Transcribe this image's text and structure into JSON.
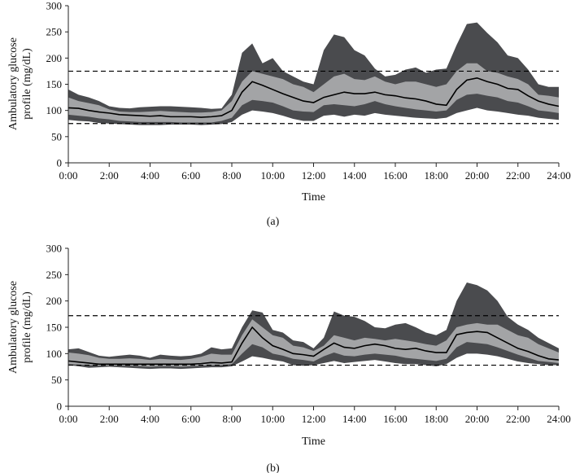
{
  "figure": {
    "panels": [
      "(a)",
      "(b)"
    ]
  },
  "chart_data": [
    {
      "type": "area",
      "panel_label": "(a)",
      "title": "",
      "xlabel": "Time",
      "ylabel": "Ambulatory glucose profile (mg/dL)",
      "ylim": [
        0,
        300
      ],
      "xlim": [
        0,
        24
      ],
      "grid": false,
      "x_ticks": [
        "0:00",
        "2:00",
        "4:00",
        "6:00",
        "8:00",
        "10:00",
        "12:00",
        "14:00",
        "16:00",
        "18:00",
        "20:00",
        "22:00",
        "24:00"
      ],
      "y_ticks": [
        0,
        50,
        100,
        150,
        200,
        250,
        300
      ],
      "reference_lines": [
        175,
        75
      ],
      "colors": {
        "outer_band": "#4a4b4e",
        "inner_band": "#a3a4a6",
        "median": "#000000",
        "reference": "#000000"
      },
      "x": [
        0,
        0.5,
        1,
        1.5,
        2,
        2.5,
        3,
        3.5,
        4,
        4.5,
        5,
        5.5,
        6,
        6.5,
        7,
        7.5,
        8,
        8.5,
        9,
        9.5,
        10,
        10.5,
        11,
        11.5,
        12,
        12.5,
        13,
        13.5,
        14,
        14.5,
        15,
        15.5,
        16,
        16.5,
        17,
        17.5,
        18,
        18.5,
        19,
        19.5,
        20,
        20.5,
        21,
        21.5,
        22,
        22.5,
        23,
        23.5,
        24
      ],
      "series": [
        {
          "values": [
            140,
            130,
            125,
            118,
            108,
            105,
            104,
            106,
            107,
            108,
            108,
            107,
            106,
            105,
            103,
            104,
            130,
            210,
            228,
            190,
            200,
            175,
            165,
            155,
            150,
            215,
            245,
            240,
            215,
            205,
            180,
            165,
            168,
            178,
            182,
            172,
            178,
            180,
            225,
            265,
            268,
            248,
            230,
            205,
            200,
            178,
            150,
            145,
            145
          ]
        },
        {
          "values": [
            125,
            118,
            114,
            110,
            102,
            98,
            97,
            97,
            98,
            99,
            98,
            97,
            96,
            96,
            97,
            100,
            118,
            155,
            175,
            170,
            165,
            160,
            150,
            145,
            135,
            150,
            165,
            170,
            160,
            158,
            165,
            155,
            150,
            155,
            155,
            150,
            145,
            150,
            175,
            190,
            190,
            175,
            172,
            165,
            160,
            150,
            130,
            128,
            125
          ]
        },
        {
          "values": [
            105,
            104,
            100,
            97,
            95,
            92,
            91,
            90,
            89,
            90,
            88,
            88,
            88,
            87,
            88,
            90,
            100,
            135,
            155,
            148,
            140,
            132,
            125,
            118,
            115,
            125,
            130,
            135,
            132,
            132,
            135,
            130,
            128,
            124,
            122,
            118,
            112,
            110,
            140,
            158,
            162,
            155,
            150,
            142,
            140,
            128,
            118,
            112,
            108
          ]
        },
        {
          "values": [
            92,
            90,
            88,
            85,
            83,
            80,
            79,
            78,
            78,
            78,
            78,
            77,
            77,
            77,
            77,
            80,
            86,
            110,
            120,
            118,
            115,
            108,
            100,
            98,
            97,
            110,
            112,
            110,
            108,
            112,
            118,
            112,
            108,
            105,
            102,
            100,
            98,
            100,
            120,
            130,
            132,
            128,
            125,
            118,
            115,
            108,
            100,
            98,
            95
          ]
        },
        {
          "values": [
            82,
            80,
            79,
            76,
            75,
            74,
            73,
            72,
            72,
            72,
            73,
            73,
            73,
            72,
            73,
            74,
            78,
            92,
            100,
            98,
            95,
            90,
            84,
            80,
            80,
            90,
            92,
            88,
            92,
            90,
            95,
            92,
            90,
            88,
            86,
            85,
            84,
            86,
            95,
            100,
            105,
            100,
            98,
            95,
            92,
            90,
            86,
            84,
            82
          ]
        }
      ]
    },
    {
      "type": "area",
      "panel_label": "(b)",
      "title": "",
      "xlabel": "Time",
      "ylabel": "Ambulatory glucose profile (mg/dL)",
      "ylim": [
        0,
        300
      ],
      "xlim": [
        0,
        24
      ],
      "grid": false,
      "x_ticks": [
        "0:00",
        "2:00",
        "4:00",
        "6:00",
        "8:00",
        "10:00",
        "12:00",
        "14:00",
        "16:00",
        "18:00",
        "20:00",
        "22:00",
        "24:00"
      ],
      "y_ticks": [
        0,
        50,
        100,
        150,
        200,
        250,
        300
      ],
      "reference_lines": [
        172,
        78
      ],
      "colors": {
        "outer_band": "#4a4b4e",
        "inner_band": "#a3a4a6",
        "median": "#000000",
        "reference": "#000000"
      },
      "x": [
        0,
        0.5,
        1,
        1.5,
        2,
        2.5,
        3,
        3.5,
        4,
        4.5,
        5,
        5.5,
        6,
        6.5,
        7,
        7.5,
        8,
        8.5,
        9,
        9.5,
        10,
        10.5,
        11,
        11.5,
        12,
        12.5,
        13,
        13.5,
        14,
        14.5,
        15,
        15.5,
        16,
        16.5,
        17,
        17.5,
        18,
        18.5,
        19,
        19.5,
        20,
        20.5,
        21,
        21.5,
        22,
        22.5,
        23,
        23.5,
        24
      ],
      "series": [
        {
          "values": [
            108,
            110,
            103,
            96,
            94,
            96,
            98,
            96,
            92,
            98,
            96,
            95,
            96,
            100,
            112,
            108,
            110,
            150,
            182,
            178,
            145,
            140,
            125,
            122,
            110,
            130,
            180,
            172,
            170,
            162,
            150,
            148,
            155,
            158,
            150,
            140,
            135,
            145,
            200,
            235,
            230,
            220,
            200,
            170,
            155,
            145,
            130,
            120,
            110
          ]
        },
        {
          "values": [
            102,
            100,
            97,
            92,
            90,
            90,
            91,
            90,
            88,
            90,
            89,
            88,
            90,
            94,
            100,
            98,
            98,
            135,
            165,
            150,
            135,
            130,
            115,
            112,
            105,
            115,
            135,
            130,
            125,
            130,
            128,
            125,
            128,
            125,
            122,
            118,
            115,
            125,
            150,
            155,
            158,
            155,
            155,
            145,
            135,
            130,
            118,
            110,
            102
          ]
        },
        {
          "values": [
            86,
            84,
            82,
            80,
            80,
            80,
            80,
            80,
            80,
            80,
            80,
            80,
            80,
            81,
            83,
            82,
            84,
            120,
            150,
            130,
            115,
            108,
            100,
            98,
            95,
            108,
            120,
            112,
            110,
            115,
            118,
            115,
            110,
            108,
            110,
            105,
            102,
            102,
            136,
            140,
            142,
            140,
            130,
            120,
            110,
            104,
            96,
            90,
            88
          ]
        },
        {
          "values": [
            80,
            79,
            78,
            77,
            77,
            77,
            77,
            76,
            75,
            76,
            76,
            75,
            76,
            77,
            78,
            78,
            80,
            100,
            118,
            112,
            100,
            96,
            90,
            88,
            85,
            95,
            102,
            96,
            95,
            98,
            100,
            98,
            96,
            92,
            90,
            88,
            86,
            90,
            112,
            122,
            120,
            118,
            112,
            105,
            98,
            92,
            86,
            84,
            82
          ]
        },
        {
          "values": [
            78,
            76,
            73,
            74,
            75,
            74,
            73,
            72,
            71,
            72,
            72,
            71,
            72,
            73,
            74,
            74,
            76,
            85,
            95,
            92,
            88,
            85,
            78,
            77,
            78,
            82,
            86,
            82,
            84,
            86,
            88,
            85,
            82,
            80,
            80,
            78,
            76,
            80,
            92,
            100,
            100,
            98,
            95,
            90,
            85,
            82,
            80,
            78,
            78
          ]
        }
      ]
    }
  ]
}
